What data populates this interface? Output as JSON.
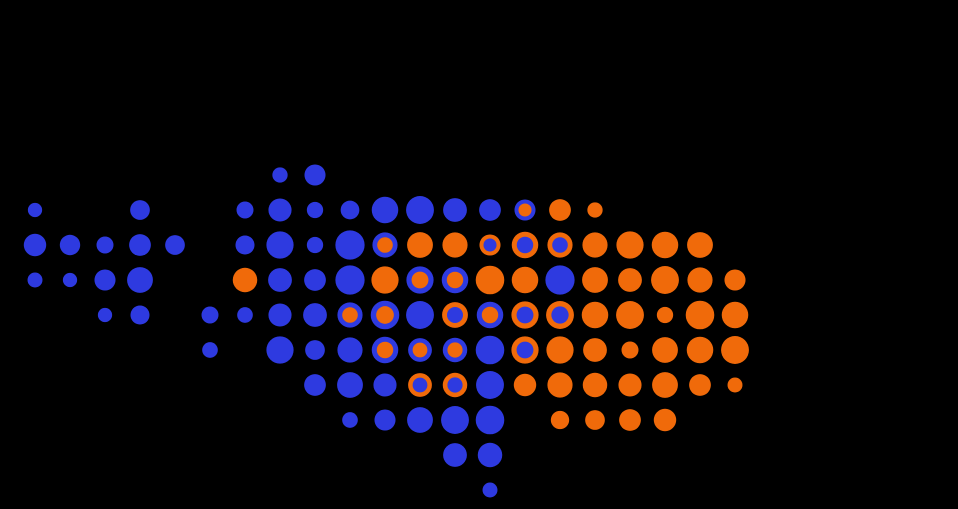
{
  "colors": {
    "background": "#000000",
    "blue": "#2e3ae0",
    "blue_dark": "#1a1ec8",
    "orange": "#f06a0a",
    "orange_dark": "#e85a08"
  },
  "legend": {
    "outer_fill_meaning": "dot color",
    "inner_ring": "mixed"
  },
  "dots": [
    {
      "row": 0,
      "col": 8,
      "size": 0.45,
      "fill": "blue",
      "ring": null
    },
    {
      "row": 0,
      "col": 9,
      "size": 0.62,
      "fill": "blue",
      "ring": null
    },
    {
      "row": 1,
      "col": 1,
      "size": 0.42,
      "fill": "blue",
      "ring": null
    },
    {
      "row": 1,
      "col": 4,
      "size": 0.58,
      "fill": "blue",
      "ring": null
    },
    {
      "row": 1,
      "col": 7,
      "size": 0.5,
      "fill": "blue",
      "ring": null
    },
    {
      "row": 1,
      "col": 8,
      "size": 0.68,
      "fill": "blue",
      "ring": null
    },
    {
      "row": 1,
      "col": 9,
      "size": 0.48,
      "fill": "blue",
      "ring": null
    },
    {
      "row": 1,
      "col": 10,
      "size": 0.55,
      "fill": "blue",
      "ring": null
    },
    {
      "row": 1,
      "col": 11,
      "size": 0.78,
      "fill": "blue",
      "ring": null
    },
    {
      "row": 1,
      "col": 12,
      "size": 0.82,
      "fill": "blue",
      "ring": null
    },
    {
      "row": 1,
      "col": 13,
      "size": 0.7,
      "fill": "blue",
      "ring": null
    },
    {
      "row": 1,
      "col": 14,
      "size": 0.64,
      "fill": "blue",
      "ring": null
    },
    {
      "row": 1,
      "col": 15,
      "size": 0.62,
      "fill": "orange",
      "ring": "blue"
    },
    {
      "row": 1,
      "col": 16,
      "size": 0.64,
      "fill": "orange",
      "ring": null
    },
    {
      "row": 1,
      "col": 17,
      "size": 0.45,
      "fill": "orange",
      "ring": null
    },
    {
      "row": 2,
      "col": 1,
      "size": 0.66,
      "fill": "blue",
      "ring": null
    },
    {
      "row": 2,
      "col": 2,
      "size": 0.6,
      "fill": "blue",
      "ring": null
    },
    {
      "row": 2,
      "col": 3,
      "size": 0.5,
      "fill": "blue",
      "ring": null
    },
    {
      "row": 2,
      "col": 4,
      "size": 0.64,
      "fill": "blue",
      "ring": null
    },
    {
      "row": 2,
      "col": 5,
      "size": 0.58,
      "fill": "blue",
      "ring": null
    },
    {
      "row": 2,
      "col": 7,
      "size": 0.56,
      "fill": "blue",
      "ring": null
    },
    {
      "row": 2,
      "col": 8,
      "size": 0.8,
      "fill": "blue",
      "ring": null
    },
    {
      "row": 2,
      "col": 9,
      "size": 0.48,
      "fill": "blue",
      "ring": null
    },
    {
      "row": 2,
      "col": 10,
      "size": 0.86,
      "fill": "blue",
      "ring": null
    },
    {
      "row": 2,
      "col": 11,
      "size": 0.74,
      "fill": "orange",
      "ring": "blue"
    },
    {
      "row": 2,
      "col": 12,
      "size": 0.76,
      "fill": "orange",
      "ring": null
    },
    {
      "row": 2,
      "col": 13,
      "size": 0.74,
      "fill": "orange",
      "ring": null
    },
    {
      "row": 2,
      "col": 14,
      "size": 0.62,
      "fill": "blue",
      "ring": "orange"
    },
    {
      "row": 2,
      "col": 15,
      "size": 0.78,
      "fill": "blue",
      "ring": "orange"
    },
    {
      "row": 2,
      "col": 16,
      "size": 0.74,
      "fill": "blue",
      "ring": "orange"
    },
    {
      "row": 2,
      "col": 17,
      "size": 0.74,
      "fill": "orange",
      "ring": null
    },
    {
      "row": 2,
      "col": 18,
      "size": 0.8,
      "fill": "orange",
      "ring": null
    },
    {
      "row": 2,
      "col": 19,
      "size": 0.78,
      "fill": "orange",
      "ring": null
    },
    {
      "row": 2,
      "col": 20,
      "size": 0.76,
      "fill": "orange",
      "ring": null
    },
    {
      "row": 3,
      "col": 1,
      "size": 0.44,
      "fill": "blue",
      "ring": null
    },
    {
      "row": 3,
      "col": 2,
      "size": 0.42,
      "fill": "blue",
      "ring": null
    },
    {
      "row": 3,
      "col": 3,
      "size": 0.62,
      "fill": "blue",
      "ring": null
    },
    {
      "row": 3,
      "col": 4,
      "size": 0.76,
      "fill": "blue",
      "ring": null
    },
    {
      "row": 3,
      "col": 7,
      "size": 0.72,
      "fill": "orange",
      "ring": null
    },
    {
      "row": 3,
      "col": 8,
      "size": 0.7,
      "fill": "blue",
      "ring": null
    },
    {
      "row": 3,
      "col": 9,
      "size": 0.64,
      "fill": "blue",
      "ring": null
    },
    {
      "row": 3,
      "col": 10,
      "size": 0.86,
      "fill": "blue",
      "ring": null
    },
    {
      "row": 3,
      "col": 11,
      "size": 0.8,
      "fill": "orange",
      "ring": null
    },
    {
      "row": 3,
      "col": 12,
      "size": 0.8,
      "fill": "orange",
      "ring": "blue"
    },
    {
      "row": 3,
      "col": 13,
      "size": 0.78,
      "fill": "orange",
      "ring": "blue"
    },
    {
      "row": 3,
      "col": 14,
      "size": 0.84,
      "fill": "orange",
      "ring": null
    },
    {
      "row": 3,
      "col": 15,
      "size": 0.78,
      "fill": "orange",
      "ring": null
    },
    {
      "row": 3,
      "col": 16,
      "size": 0.86,
      "fill": "blue",
      "ring": null
    },
    {
      "row": 3,
      "col": 17,
      "size": 0.76,
      "fill": "orange",
      "ring": null
    },
    {
      "row": 3,
      "col": 18,
      "size": 0.7,
      "fill": "orange",
      "ring": null
    },
    {
      "row": 3,
      "col": 19,
      "size": 0.82,
      "fill": "orange",
      "ring": null
    },
    {
      "row": 3,
      "col": 20,
      "size": 0.74,
      "fill": "orange",
      "ring": null
    },
    {
      "row": 3,
      "col": 21,
      "size": 0.62,
      "fill": "orange",
      "ring": null
    },
    {
      "row": 4,
      "col": 3,
      "size": 0.42,
      "fill": "blue",
      "ring": null
    },
    {
      "row": 4,
      "col": 4,
      "size": 0.56,
      "fill": "blue",
      "ring": null
    },
    {
      "row": 4,
      "col": 6,
      "size": 0.5,
      "fill": "blue",
      "ring": null
    },
    {
      "row": 4,
      "col": 7,
      "size": 0.46,
      "fill": "blue",
      "ring": null
    },
    {
      "row": 4,
      "col": 8,
      "size": 0.68,
      "fill": "blue",
      "ring": null
    },
    {
      "row": 4,
      "col": 9,
      "size": 0.7,
      "fill": "blue",
      "ring": null
    },
    {
      "row": 4,
      "col": 10,
      "size": 0.74,
      "fill": "orange",
      "ring": "blue"
    },
    {
      "row": 4,
      "col": 11,
      "size": 0.84,
      "fill": "orange",
      "ring": "blue"
    },
    {
      "row": 4,
      "col": 12,
      "size": 0.82,
      "fill": "blue",
      "ring": null
    },
    {
      "row": 4,
      "col": 13,
      "size": 0.76,
      "fill": "blue",
      "ring": "orange"
    },
    {
      "row": 4,
      "col": 14,
      "size": 0.78,
      "fill": "orange",
      "ring": "blue"
    },
    {
      "row": 4,
      "col": 15,
      "size": 0.8,
      "fill": "blue",
      "ring": "orange"
    },
    {
      "row": 4,
      "col": 16,
      "size": 0.82,
      "fill": "blue",
      "ring": "orange"
    },
    {
      "row": 4,
      "col": 17,
      "size": 0.78,
      "fill": "orange",
      "ring": null
    },
    {
      "row": 4,
      "col": 18,
      "size": 0.82,
      "fill": "orange",
      "ring": null
    },
    {
      "row": 4,
      "col": 19,
      "size": 0.48,
      "fill": "orange",
      "ring": null
    },
    {
      "row": 4,
      "col": 20,
      "size": 0.84,
      "fill": "orange",
      "ring": null
    },
    {
      "row": 4,
      "col": 21,
      "size": 0.78,
      "fill": "orange",
      "ring": null
    },
    {
      "row": 5,
      "col": 6,
      "size": 0.46,
      "fill": "blue",
      "ring": null
    },
    {
      "row": 5,
      "col": 8,
      "size": 0.8,
      "fill": "blue",
      "ring": null
    },
    {
      "row": 5,
      "col": 9,
      "size": 0.58,
      "fill": "blue",
      "ring": null
    },
    {
      "row": 5,
      "col": 10,
      "size": 0.74,
      "fill": "blue",
      "ring": null
    },
    {
      "row": 5,
      "col": 11,
      "size": 0.78,
      "fill": "orange",
      "ring": "blue"
    },
    {
      "row": 5,
      "col": 12,
      "size": 0.7,
      "fill": "orange",
      "ring": "blue"
    },
    {
      "row": 5,
      "col": 13,
      "size": 0.72,
      "fill": "orange",
      "ring": "blue"
    },
    {
      "row": 5,
      "col": 14,
      "size": 0.84,
      "fill": "blue",
      "ring": null
    },
    {
      "row": 5,
      "col": 15,
      "size": 0.8,
      "fill": "blue",
      "ring": "orange"
    },
    {
      "row": 5,
      "col": 16,
      "size": 0.8,
      "fill": "orange",
      "ring": null
    },
    {
      "row": 5,
      "col": 17,
      "size": 0.7,
      "fill": "orange",
      "ring": null
    },
    {
      "row": 5,
      "col": 18,
      "size": 0.5,
      "fill": "orange",
      "ring": null
    },
    {
      "row": 5,
      "col": 19,
      "size": 0.76,
      "fill": "orange",
      "ring": null
    },
    {
      "row": 5,
      "col": 20,
      "size": 0.78,
      "fill": "orange",
      "ring": null
    },
    {
      "row": 5,
      "col": 21,
      "size": 0.82,
      "fill": "orange",
      "ring": null
    },
    {
      "row": 6,
      "col": 9,
      "size": 0.64,
      "fill": "blue",
      "ring": null
    },
    {
      "row": 6,
      "col": 10,
      "size": 0.76,
      "fill": "blue",
      "ring": null
    },
    {
      "row": 6,
      "col": 11,
      "size": 0.68,
      "fill": "blue",
      "ring": null
    },
    {
      "row": 6,
      "col": 12,
      "size": 0.7,
      "fill": "blue",
      "ring": "orange"
    },
    {
      "row": 6,
      "col": 13,
      "size": 0.72,
      "fill": "blue",
      "ring": "orange"
    },
    {
      "row": 6,
      "col": 14,
      "size": 0.82,
      "fill": "blue",
      "ring": null
    },
    {
      "row": 6,
      "col": 15,
      "size": 0.66,
      "fill": "orange",
      "ring": null
    },
    {
      "row": 6,
      "col": 16,
      "size": 0.74,
      "fill": "orange",
      "ring": null
    },
    {
      "row": 6,
      "col": 17,
      "size": 0.72,
      "fill": "orange",
      "ring": null
    },
    {
      "row": 6,
      "col": 18,
      "size": 0.68,
      "fill": "orange",
      "ring": null
    },
    {
      "row": 6,
      "col": 19,
      "size": 0.76,
      "fill": "orange",
      "ring": null
    },
    {
      "row": 6,
      "col": 20,
      "size": 0.64,
      "fill": "orange",
      "ring": null
    },
    {
      "row": 6,
      "col": 21,
      "size": 0.44,
      "fill": "orange",
      "ring": null
    },
    {
      "row": 7,
      "col": 10,
      "size": 0.46,
      "fill": "blue",
      "ring": null
    },
    {
      "row": 7,
      "col": 11,
      "size": 0.62,
      "fill": "blue",
      "ring": null
    },
    {
      "row": 7,
      "col": 12,
      "size": 0.76,
      "fill": "blue",
      "ring": null
    },
    {
      "row": 7,
      "col": 13,
      "size": 0.82,
      "fill": "blue",
      "ring": null
    },
    {
      "row": 7,
      "col": 14,
      "size": 0.84,
      "fill": "blue",
      "ring": null
    },
    {
      "row": 7,
      "col": 16,
      "size": 0.54,
      "fill": "orange",
      "ring": null
    },
    {
      "row": 7,
      "col": 17,
      "size": 0.58,
      "fill": "orange",
      "ring": null
    },
    {
      "row": 7,
      "col": 18,
      "size": 0.64,
      "fill": "orange",
      "ring": null
    },
    {
      "row": 7,
      "col": 19,
      "size": 0.66,
      "fill": "orange",
      "ring": null
    },
    {
      "row": 8,
      "col": 13,
      "size": 0.7,
      "fill": "blue",
      "ring": null
    },
    {
      "row": 8,
      "col": 14,
      "size": 0.72,
      "fill": "blue",
      "ring": null
    },
    {
      "row": 9,
      "col": 14,
      "size": 0.44,
      "fill": "blue",
      "ring": null
    }
  ]
}
